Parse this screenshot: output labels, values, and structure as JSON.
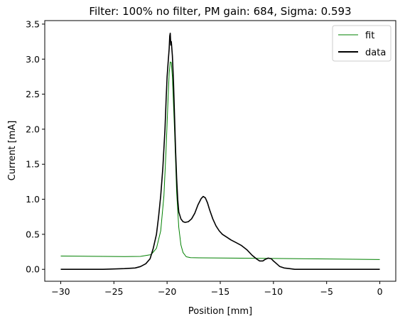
{
  "chart_data": {
    "type": "line",
    "title": "Filter: 100% no filter, PM gain: 684, Sigma: 0.593",
    "xlabel": "Position [mm]",
    "ylabel": "Current [mA]",
    "xlim": [
      -31.5,
      1.5
    ],
    "ylim": [
      -0.17,
      3.55
    ],
    "x_ticks": [
      -30,
      -25,
      -20,
      -15,
      -10,
      -5,
      0
    ],
    "x_tick_labels": [
      "−30",
      "−25",
      "−20",
      "−15",
      "−10",
      "−5",
      "0"
    ],
    "y_ticks": [
      0.0,
      0.5,
      1.0,
      1.5,
      2.0,
      2.5,
      3.0,
      3.5
    ],
    "y_tick_labels": [
      "0.0",
      "0.5",
      "1.0",
      "1.5",
      "2.0",
      "2.5",
      "3.0",
      "3.5"
    ],
    "grid": false,
    "legend_position": "top-right",
    "series": [
      {
        "name": "fit",
        "color": "#008000",
        "x": [
          -30,
          -28,
          -26,
          -24,
          -22.5,
          -21.5,
          -21.0,
          -20.6,
          -20.3,
          -20.1,
          -19.9,
          -19.8,
          -19.7,
          -19.6,
          -19.5,
          -19.3,
          -19.1,
          -18.9,
          -18.7,
          -18.5,
          -18.2,
          -17.8,
          -17.0,
          -15,
          -10,
          -5,
          0
        ],
        "y": [
          0.19,
          0.188,
          0.185,
          0.183,
          0.185,
          0.21,
          0.3,
          0.55,
          1.05,
          1.7,
          2.45,
          2.8,
          2.96,
          2.95,
          2.75,
          2.0,
          1.1,
          0.6,
          0.35,
          0.24,
          0.18,
          0.168,
          0.165,
          0.162,
          0.155,
          0.148,
          0.14
        ]
      },
      {
        "name": "data",
        "color": "#000000",
        "x": [
          -30,
          -28,
          -26,
          -24,
          -23,
          -22.5,
          -22.0,
          -21.6,
          -21.3,
          -21.0,
          -20.8,
          -20.6,
          -20.4,
          -20.2,
          -20.1,
          -20.0,
          -19.9,
          -19.8,
          -19.75,
          -19.7,
          -19.65,
          -19.6,
          -19.5,
          -19.4,
          -19.3,
          -19.2,
          -19.1,
          -19.0,
          -18.9,
          -18.7,
          -18.5,
          -18.3,
          -18.0,
          -17.7,
          -17.4,
          -17.1,
          -16.8,
          -16.6,
          -16.4,
          -16.2,
          -16.0,
          -15.7,
          -15.4,
          -15.1,
          -14.8,
          -14.4,
          -14.0,
          -13.5,
          -13.0,
          -12.5,
          -12.0,
          -11.6,
          -11.3,
          -11.0,
          -10.8,
          -10.5,
          -10.2,
          -10.0,
          -9.7,
          -9.4,
          -9.0,
          -8.5,
          -8.0,
          -7,
          -5,
          -3,
          -1,
          0
        ],
        "y": [
          0.0,
          0.0,
          0.0,
          0.01,
          0.02,
          0.04,
          0.08,
          0.15,
          0.3,
          0.5,
          0.75,
          1.05,
          1.45,
          2.0,
          2.4,
          2.75,
          2.95,
          3.15,
          3.33,
          3.37,
          3.2,
          3.25,
          3.05,
          2.7,
          2.2,
          1.7,
          1.3,
          1.0,
          0.82,
          0.72,
          0.68,
          0.67,
          0.68,
          0.72,
          0.8,
          0.92,
          1.01,
          1.04,
          1.02,
          0.95,
          0.85,
          0.72,
          0.62,
          0.55,
          0.5,
          0.46,
          0.42,
          0.38,
          0.34,
          0.28,
          0.2,
          0.15,
          0.12,
          0.12,
          0.14,
          0.16,
          0.15,
          0.12,
          0.08,
          0.04,
          0.02,
          0.01,
          0.0,
          0.0,
          0.0,
          0.0,
          0.0,
          0.0
        ]
      }
    ]
  }
}
